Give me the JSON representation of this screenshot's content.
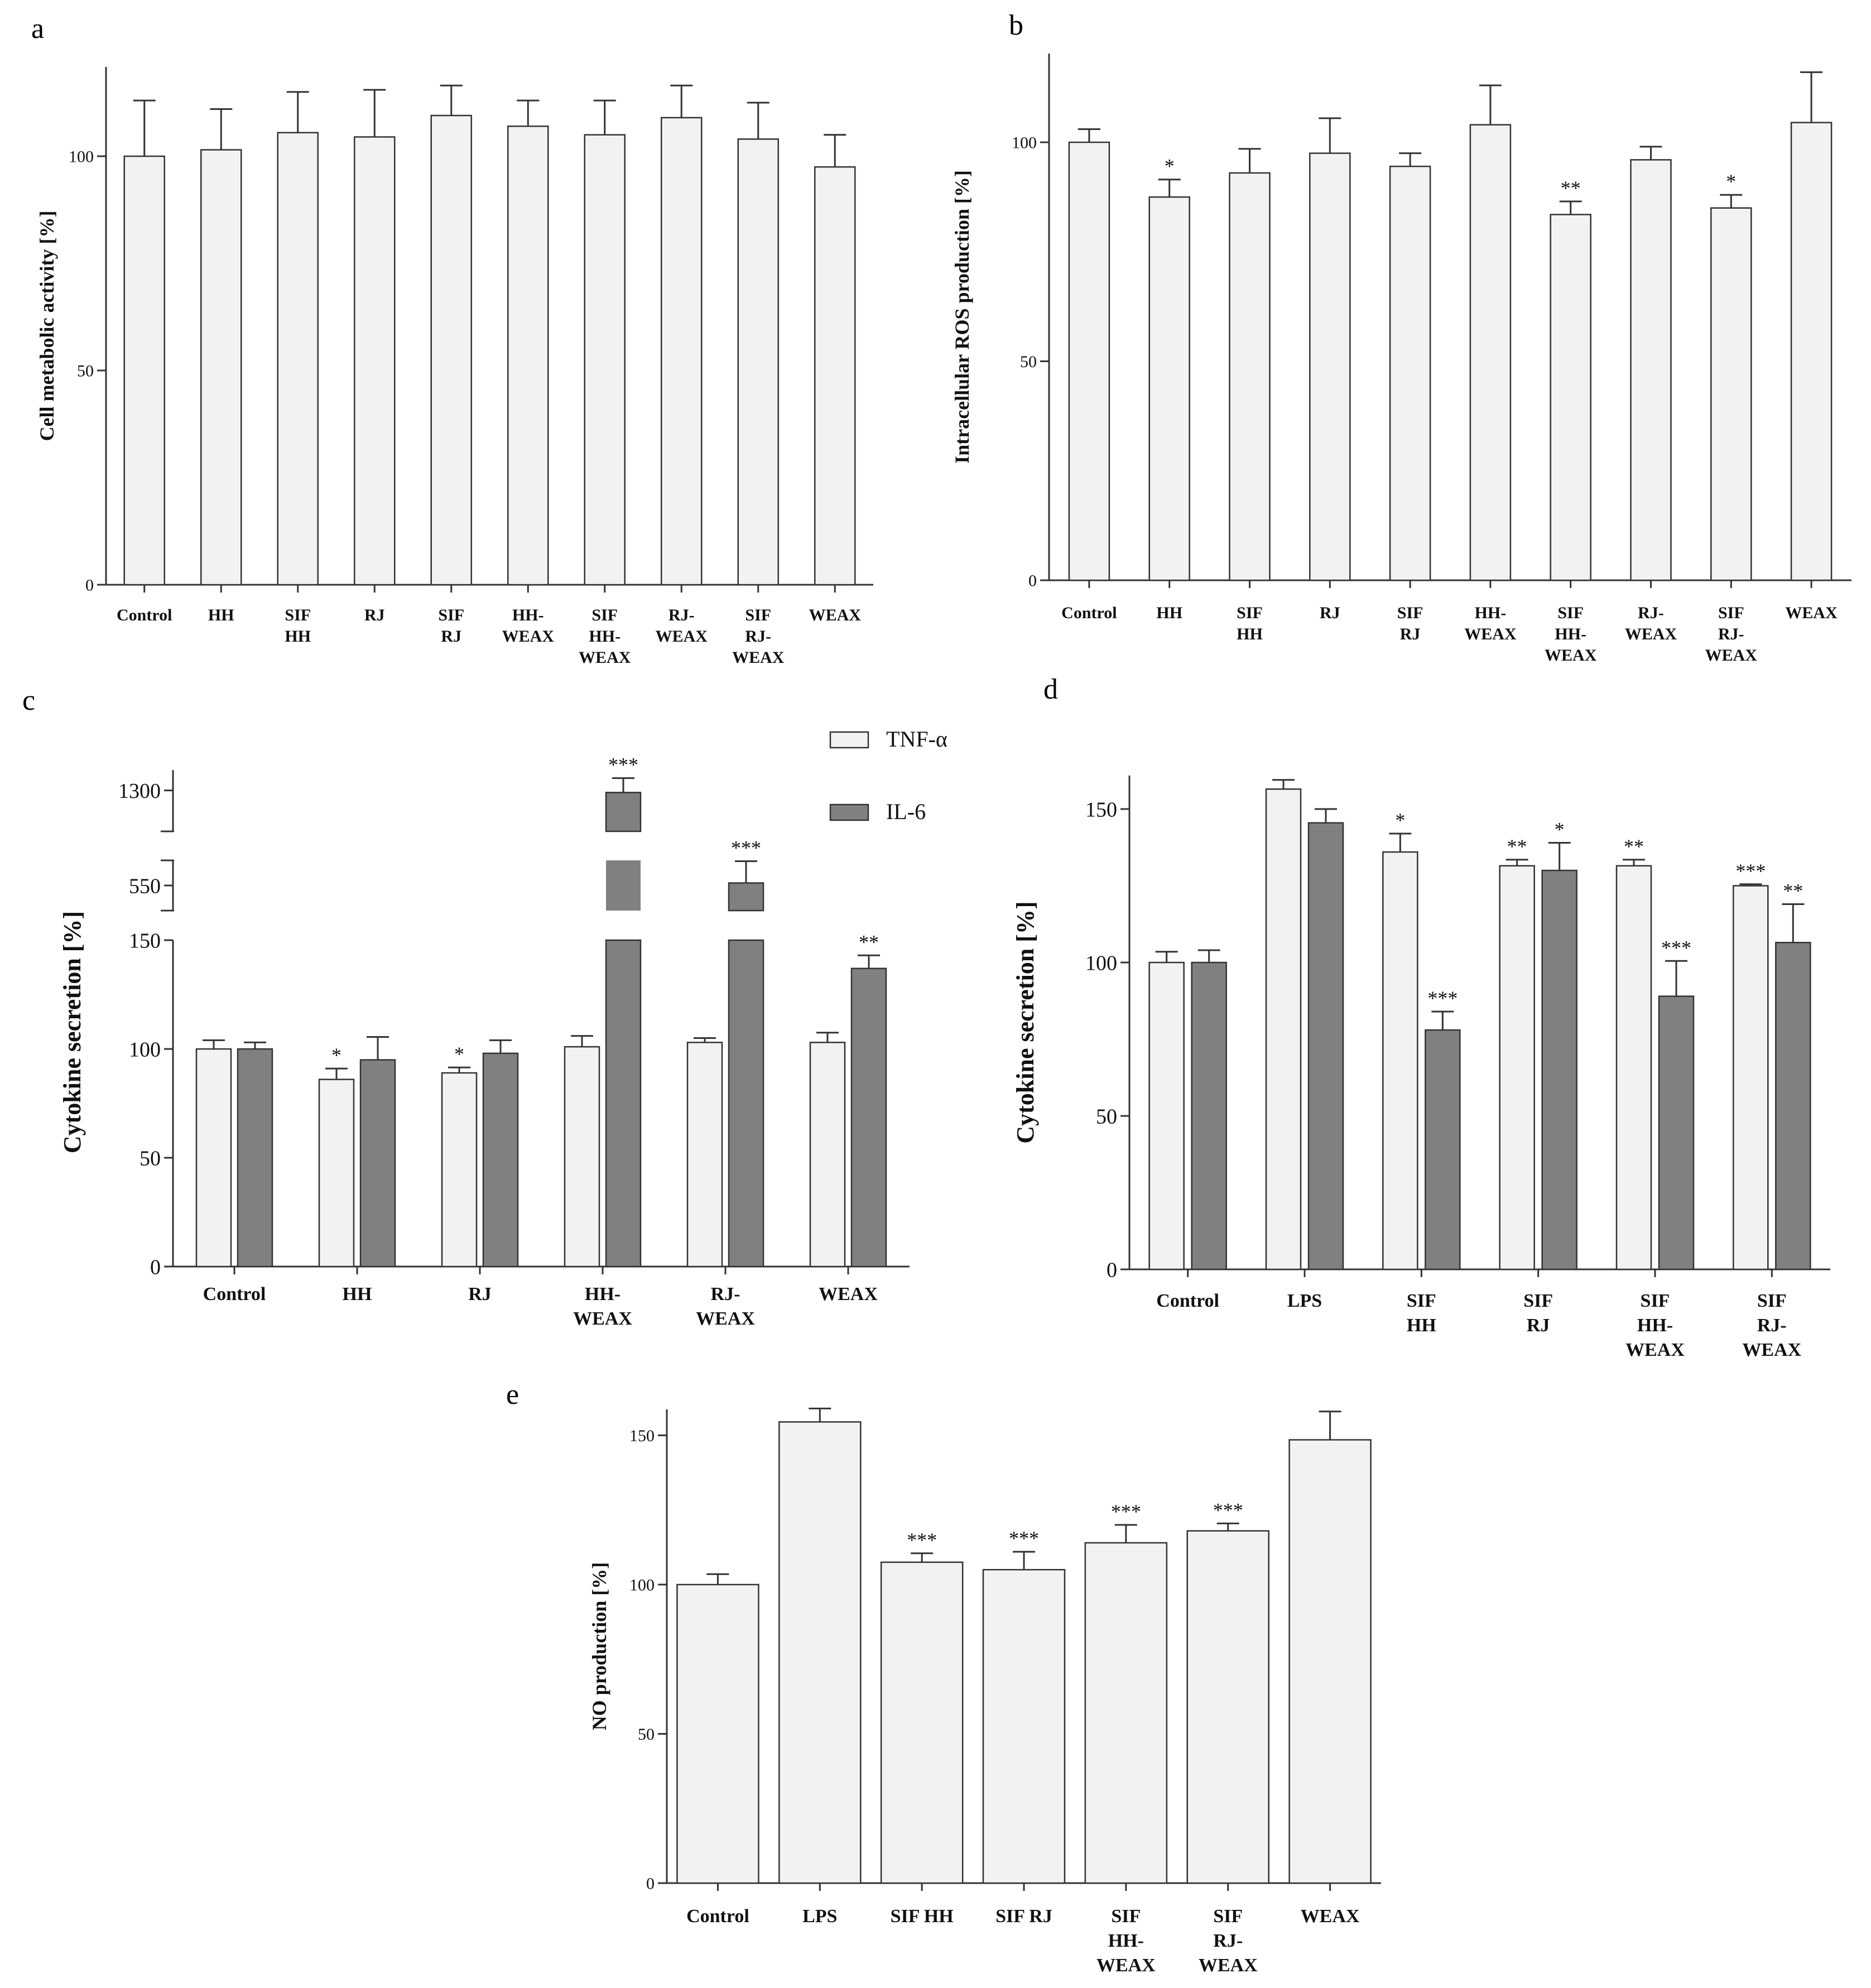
{
  "colors": {
    "light_bar": "#f2f2f2",
    "dark_bar": "#808080",
    "stroke": "#333333",
    "text": "#111111"
  },
  "chart_data": [
    {
      "panel": "a",
      "type": "bar",
      "ylabel": "Cell metabolic activity [%]",
      "ylim": [
        0,
        120
      ],
      "yticks": [
        "0",
        "50",
        "100"
      ],
      "categories": [
        [
          "Control"
        ],
        [
          "HH"
        ],
        [
          "SIF",
          "HH"
        ],
        [
          "RJ"
        ],
        [
          "SIF",
          "RJ"
        ],
        [
          "HH-",
          "WEAX"
        ],
        [
          "SIF",
          "HH-",
          "WEAX"
        ],
        [
          "RJ-",
          "WEAX"
        ],
        [
          "SIF",
          "RJ-",
          "WEAX"
        ],
        [
          "WEAX"
        ]
      ],
      "series": [
        {
          "name": "Cell metabolic activity",
          "color": "light",
          "values": [
            100,
            101.5,
            105.5,
            104.5,
            109.5,
            107,
            105,
            109,
            104,
            97.5
          ],
          "errors": [
            13,
            9.5,
            9.5,
            11,
            7,
            6,
            8,
            7.5,
            8.5,
            7.5
          ],
          "sig": [
            "",
            "",
            "",
            "",
            "",
            "",
            "",
            "",
            "",
            ""
          ]
        }
      ]
    },
    {
      "panel": "b",
      "type": "bar",
      "ylabel": "Intracellular ROS production [%]",
      "ylim": [
        0,
        120
      ],
      "yticks": [
        "0",
        "50",
        "100"
      ],
      "categories": [
        [
          "Control"
        ],
        [
          "HH"
        ],
        [
          "SIF",
          "HH"
        ],
        [
          "RJ"
        ],
        [
          "SIF",
          "RJ"
        ],
        [
          "HH-",
          "WEAX"
        ],
        [
          "SIF",
          "HH-",
          "WEAX"
        ],
        [
          "RJ-",
          "WEAX"
        ],
        [
          "SIF",
          "RJ-",
          "WEAX"
        ],
        [
          "WEAX"
        ]
      ],
      "series": [
        {
          "name": "Intracellular ROS production",
          "color": "light",
          "values": [
            100,
            87.5,
            93,
            97.5,
            94.5,
            104,
            83.5,
            96,
            85,
            104.5
          ],
          "errors": [
            3,
            4,
            5.5,
            8,
            3,
            9,
            3,
            3,
            3,
            11.5
          ],
          "sig": [
            "",
            "*",
            "",
            "",
            "",
            "",
            "**",
            "",
            "*",
            ""
          ]
        }
      ]
    },
    {
      "panel": "c",
      "type": "bar",
      "ylabel": "Cytokine secretion [%]",
      "axis_break": true,
      "ylim": [
        0,
        150
      ],
      "yticks": [
        "0",
        "50",
        "100",
        "150"
      ],
      "upper_ticks": [
        "550",
        "1300"
      ],
      "legend": [
        "TNF-α",
        "IL-6"
      ],
      "legend_position": "top-right",
      "categories": [
        [
          "Control"
        ],
        [
          "HH"
        ],
        [
          "RJ"
        ],
        [
          "HH-",
          "WEAX"
        ],
        [
          "RJ-",
          "WEAX"
        ],
        [
          "WEAX"
        ]
      ],
      "series": [
        {
          "name": "TNF-α",
          "color": "light",
          "values": [
            100,
            86,
            89,
            101,
            103,
            103
          ],
          "errors": [
            4,
            5,
            2.5,
            5,
            2,
            4.5
          ],
          "sig": [
            "",
            "*",
            "*",
            "",
            "",
            ""
          ]
        },
        {
          "name": "IL-6",
          "color": "dark",
          "values": [
            100,
            95,
            98,
            1290,
            565,
            137
          ],
          "errors": [
            3,
            10.5,
            6,
            70,
            130,
            6
          ],
          "sig": [
            "",
            "",
            "",
            "***",
            "***",
            "**"
          ]
        }
      ]
    },
    {
      "panel": "d",
      "type": "bar",
      "ylabel": "Cytokine secretion [%]",
      "ylim": [
        0,
        160
      ],
      "yticks": [
        "0",
        "50",
        "100",
        "150"
      ],
      "categories": [
        [
          "Control"
        ],
        [
          "LPS"
        ],
        [
          "SIF",
          "HH"
        ],
        [
          "SIF",
          "RJ"
        ],
        [
          "SIF",
          "HH-",
          "WEAX"
        ],
        [
          "SIF",
          "RJ-",
          "WEAX"
        ]
      ],
      "series": [
        {
          "name": "TNF-α",
          "color": "light",
          "values": [
            100,
            156.5,
            136,
            131.5,
            131.5,
            125
          ],
          "errors": [
            3.5,
            3,
            6,
            2,
            2,
            0.5
          ],
          "sig": [
            "",
            "",
            "*",
            "**",
            "**",
            "***"
          ]
        },
        {
          "name": "IL-6",
          "color": "dark",
          "values": [
            100,
            145.5,
            78,
            130,
            89,
            106.5
          ],
          "errors": [
            4,
            4.5,
            6,
            9,
            11.5,
            12.5
          ],
          "sig": [
            "",
            "",
            "***",
            "*",
            "***",
            "**"
          ]
        }
      ]
    },
    {
      "panel": "e",
      "type": "bar",
      "ylabel": "NO production [%]",
      "ylim": [
        0,
        160
      ],
      "yticks": [
        "0",
        "50",
        "100",
        "150"
      ],
      "categories": [
        [
          "Control"
        ],
        [
          "LPS"
        ],
        [
          "SIF HH"
        ],
        [
          "SIF RJ"
        ],
        [
          "SIF",
          "HH-",
          "WEAX"
        ],
        [
          "SIF",
          "RJ-",
          "WEAX"
        ],
        [
          "WEAX"
        ]
      ],
      "series": [
        {
          "name": "NO production",
          "color": "light",
          "values": [
            100,
            154.5,
            107.5,
            105,
            114,
            118,
            148.5
          ],
          "errors": [
            3.5,
            4.5,
            3,
            6,
            6,
            2.5,
            9.5
          ],
          "sig": [
            "",
            "",
            "***",
            "***",
            "***",
            "***",
            ""
          ]
        }
      ]
    }
  ]
}
